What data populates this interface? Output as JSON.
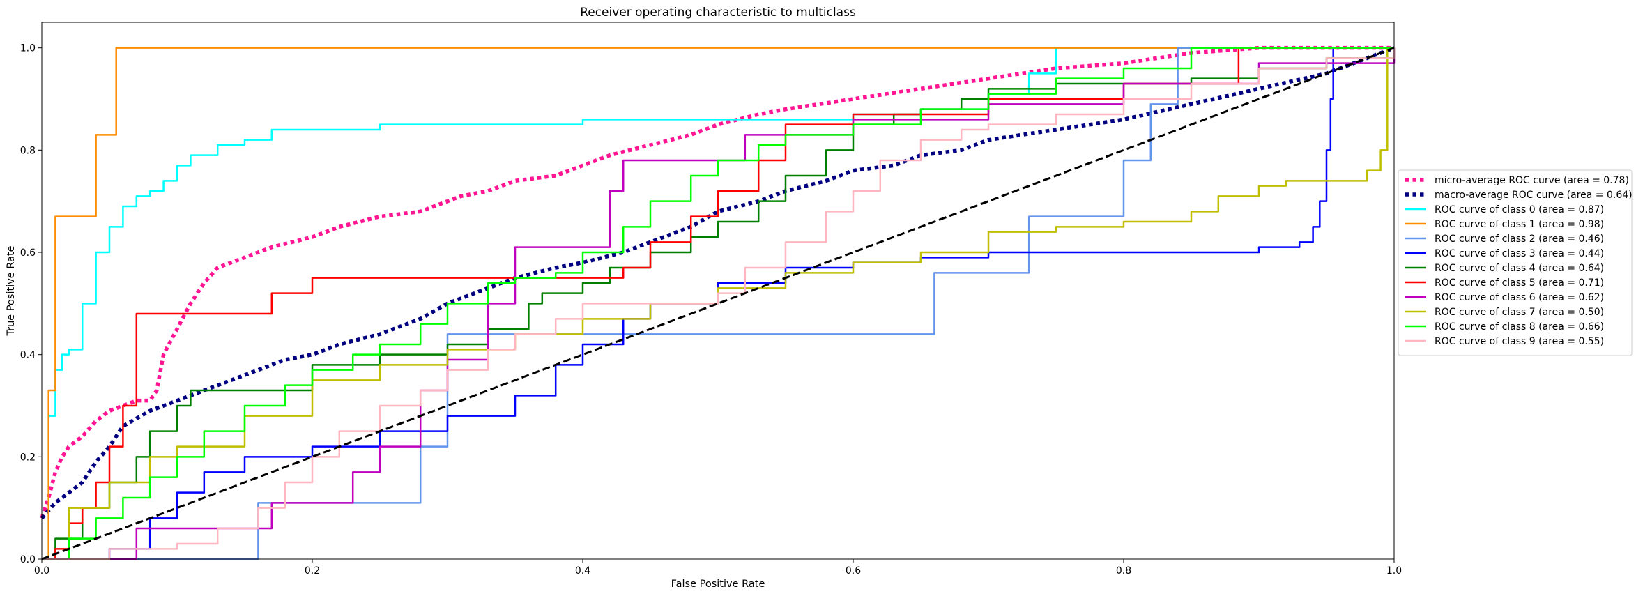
{
  "chart_data": {
    "type": "line",
    "title": "Receiver operating characteristic to multiclass",
    "xlabel": "False Positive Rate",
    "ylabel": "True Positive Rate",
    "xlim": [
      0.0,
      1.0
    ],
    "ylim": [
      0.0,
      1.05
    ],
    "xticks": [
      "0.0",
      "0.2",
      "0.4",
      "0.6",
      "0.8",
      "1.0"
    ],
    "yticks": [
      "0.0",
      "0.2",
      "0.4",
      "0.6",
      "0.8",
      "1.0"
    ],
    "grid": false,
    "legend_position": "right, outside plot",
    "series": [
      {
        "name": "micro-average ROC curve (area = 0.78)",
        "color": "#ff1493",
        "style": "dotted-thick",
        "x": [
          0,
          0.005,
          0.01,
          0.015,
          0.02,
          0.03,
          0.04,
          0.05,
          0.06,
          0.07,
          0.08,
          0.085,
          0.09,
          0.1,
          0.11,
          0.12,
          0.13,
          0.14,
          0.15,
          0.17,
          0.2,
          0.22,
          0.25,
          0.28,
          0.3,
          0.31,
          0.33,
          0.35,
          0.38,
          0.4,
          0.42,
          0.45,
          0.48,
          0.5,
          0.53,
          0.55,
          0.6,
          0.65,
          0.7,
          0.75,
          0.8,
          0.85,
          0.9,
          0.95,
          1.0
        ],
        "y": [
          0.08,
          0.12,
          0.17,
          0.2,
          0.22,
          0.24,
          0.27,
          0.29,
          0.3,
          0.31,
          0.31,
          0.33,
          0.4,
          0.45,
          0.5,
          0.54,
          0.57,
          0.58,
          0.59,
          0.61,
          0.63,
          0.65,
          0.67,
          0.68,
          0.7,
          0.71,
          0.72,
          0.74,
          0.75,
          0.77,
          0.79,
          0.81,
          0.83,
          0.85,
          0.87,
          0.88,
          0.9,
          0.92,
          0.94,
          0.96,
          0.97,
          0.99,
          1.0,
          1.0,
          1.0
        ]
      },
      {
        "name": "macro-average ROC curve (area = 0.64)",
        "color": "#000080",
        "style": "dotted-thick",
        "x": [
          0,
          0.01,
          0.02,
          0.03,
          0.04,
          0.05,
          0.06,
          0.08,
          0.1,
          0.12,
          0.15,
          0.18,
          0.2,
          0.22,
          0.25,
          0.28,
          0.3,
          0.33,
          0.35,
          0.38,
          0.4,
          0.43,
          0.45,
          0.48,
          0.5,
          0.53,
          0.55,
          0.58,
          0.6,
          0.63,
          0.65,
          0.68,
          0.7,
          0.75,
          0.8,
          0.85,
          0.9,
          0.95,
          1.0
        ],
        "y": [
          0.08,
          0.11,
          0.13,
          0.15,
          0.19,
          0.22,
          0.26,
          0.29,
          0.31,
          0.33,
          0.36,
          0.39,
          0.4,
          0.42,
          0.44,
          0.47,
          0.5,
          0.53,
          0.55,
          0.57,
          0.58,
          0.6,
          0.62,
          0.65,
          0.68,
          0.7,
          0.72,
          0.74,
          0.76,
          0.77,
          0.79,
          0.8,
          0.82,
          0.84,
          0.86,
          0.89,
          0.92,
          0.95,
          1.0
        ]
      },
      {
        "name": "ROC curve of class 0 (area = 0.87)",
        "color": "#00ffff",
        "style": "solid",
        "x": [
          0,
          0.005,
          0.01,
          0.015,
          0.02,
          0.03,
          0.04,
          0.05,
          0.06,
          0.07,
          0.08,
          0.09,
          0.1,
          0.11,
          0.13,
          0.15,
          0.17,
          0.2,
          0.25,
          0.3,
          0.35,
          0.4,
          0.45,
          0.5,
          0.55,
          0.6,
          0.65,
          0.7,
          0.73,
          0.75,
          1.0
        ],
        "y": [
          0,
          0.28,
          0.37,
          0.4,
          0.41,
          0.5,
          0.6,
          0.65,
          0.69,
          0.71,
          0.72,
          0.74,
          0.77,
          0.79,
          0.81,
          0.82,
          0.84,
          0.84,
          0.85,
          0.85,
          0.85,
          0.86,
          0.86,
          0.86,
          0.86,
          0.87,
          0.88,
          0.91,
          0.95,
          1.0,
          1.0
        ]
      },
      {
        "name": "ROC curve of class 1 (area = 0.98)",
        "color": "#ff8c00",
        "style": "solid",
        "x": [
          0,
          0.005,
          0.01,
          0.02,
          0.03,
          0.04,
          0.05,
          0.055,
          0.1,
          0.5,
          1.0
        ],
        "y": [
          0,
          0.33,
          0.67,
          0.67,
          0.67,
          0.83,
          0.83,
          1.0,
          1.0,
          1.0,
          1.0
        ]
      },
      {
        "name": "ROC curve of class 2 (area = 0.46)",
        "color": "#6495ed",
        "style": "solid",
        "x": [
          0,
          0.16,
          0.16,
          0.28,
          0.28,
          0.3,
          0.3,
          0.35,
          0.4,
          0.5,
          0.6,
          0.65,
          0.66,
          0.66,
          0.73,
          0.73,
          0.8,
          0.8,
          0.82,
          0.82,
          0.84,
          0.84,
          1.0
        ],
        "y": [
          0,
          0,
          0.11,
          0.11,
          0.22,
          0.33,
          0.44,
          0.44,
          0.44,
          0.44,
          0.44,
          0.44,
          0.44,
          0.56,
          0.56,
          0.67,
          0.67,
          0.78,
          0.78,
          0.89,
          0.89,
          1.0,
          1.0
        ]
      },
      {
        "name": "ROC curve of class 3 (area = 0.44)",
        "color": "#0000ff",
        "style": "solid",
        "x": [
          0,
          0.05,
          0.08,
          0.1,
          0.12,
          0.15,
          0.2,
          0.25,
          0.3,
          0.35,
          0.38,
          0.4,
          0.43,
          0.45,
          0.5,
          0.55,
          0.6,
          0.65,
          0.7,
          0.8,
          0.9,
          0.93,
          0.94,
          0.945,
          0.95,
          0.953,
          0.955,
          1.0
        ],
        "y": [
          0,
          0.02,
          0.08,
          0.13,
          0.17,
          0.2,
          0.22,
          0.25,
          0.28,
          0.32,
          0.38,
          0.42,
          0.47,
          0.5,
          0.54,
          0.57,
          0.58,
          0.59,
          0.6,
          0.6,
          0.61,
          0.62,
          0.65,
          0.7,
          0.8,
          0.9,
          1.0,
          1.0
        ]
      },
      {
        "name": "ROC curve of class 4 (area = 0.64)",
        "color": "#008000",
        "style": "solid",
        "x": [
          0,
          0.01,
          0.03,
          0.05,
          0.07,
          0.08,
          0.1,
          0.11,
          0.13,
          0.16,
          0.2,
          0.25,
          0.3,
          0.33,
          0.36,
          0.37,
          0.4,
          0.42,
          0.45,
          0.48,
          0.5,
          0.53,
          0.55,
          0.58,
          0.6,
          0.63,
          0.65,
          0.68,
          0.7,
          0.75,
          0.8,
          0.85,
          0.9,
          0.95,
          1.0
        ],
        "y": [
          0,
          0.04,
          0.1,
          0.15,
          0.2,
          0.25,
          0.3,
          0.33,
          0.33,
          0.33,
          0.38,
          0.4,
          0.42,
          0.45,
          0.5,
          0.52,
          0.54,
          0.57,
          0.6,
          0.63,
          0.66,
          0.7,
          0.75,
          0.8,
          0.85,
          0.87,
          0.88,
          0.9,
          0.92,
          0.93,
          0.93,
          0.94,
          0.96,
          0.98,
          1.0
        ]
      },
      {
        "name": "ROC curve of class 5 (area = 0.71)",
        "color": "#ff0000",
        "style": "solid",
        "x": [
          0,
          0.01,
          0.02,
          0.03,
          0.04,
          0.05,
          0.06,
          0.07,
          0.1,
          0.15,
          0.17,
          0.2,
          0.25,
          0.3,
          0.35,
          0.4,
          0.43,
          0.45,
          0.48,
          0.5,
          0.53,
          0.55,
          0.6,
          0.7,
          0.8,
          0.88,
          0.885,
          1.0
        ],
        "y": [
          0,
          0.02,
          0.07,
          0.1,
          0.15,
          0.22,
          0.3,
          0.48,
          0.48,
          0.48,
          0.52,
          0.55,
          0.55,
          0.55,
          0.55,
          0.55,
          0.57,
          0.62,
          0.67,
          0.72,
          0.78,
          0.85,
          0.87,
          0.9,
          0.93,
          0.93,
          1.0,
          1.0
        ]
      },
      {
        "name": "ROC curve of class 6 (area = 0.62)",
        "color": "#bf00bf",
        "style": "solid",
        "x": [
          0,
          0.07,
          0.07,
          0.16,
          0.17,
          0.21,
          0.23,
          0.25,
          0.28,
          0.3,
          0.33,
          0.35,
          0.38,
          0.4,
          0.42,
          0.43,
          0.45,
          0.5,
          0.52,
          0.6,
          0.7,
          0.8,
          0.9,
          1.0
        ],
        "y": [
          0,
          0,
          0.06,
          0.06,
          0.11,
          0.11,
          0.17,
          0.22,
          0.33,
          0.39,
          0.5,
          0.61,
          0.61,
          0.61,
          0.72,
          0.78,
          0.78,
          0.78,
          0.83,
          0.86,
          0.89,
          0.93,
          0.97,
          1.0
        ]
      },
      {
        "name": "ROC curve of class 7 (area = 0.50)",
        "color": "#bfbf00",
        "style": "solid",
        "x": [
          0,
          0.02,
          0.05,
          0.08,
          0.1,
          0.15,
          0.2,
          0.25,
          0.3,
          0.35,
          0.4,
          0.45,
          0.5,
          0.55,
          0.6,
          0.65,
          0.7,
          0.75,
          0.8,
          0.85,
          0.87,
          0.9,
          0.92,
          0.95,
          0.98,
          0.99,
          0.995,
          1.0
        ],
        "y": [
          0,
          0.1,
          0.15,
          0.2,
          0.22,
          0.28,
          0.35,
          0.38,
          0.41,
          0.44,
          0.47,
          0.5,
          0.53,
          0.56,
          0.58,
          0.6,
          0.64,
          0.65,
          0.66,
          0.68,
          0.71,
          0.73,
          0.74,
          0.74,
          0.76,
          0.8,
          1.0,
          1.0
        ]
      },
      {
        "name": "ROC curve of class 8 (area = 0.66)",
        "color": "#00ff00",
        "style": "solid",
        "x": [
          0,
          0.02,
          0.04,
          0.06,
          0.08,
          0.1,
          0.12,
          0.15,
          0.18,
          0.2,
          0.23,
          0.25,
          0.28,
          0.3,
          0.33,
          0.35,
          0.38,
          0.4,
          0.43,
          0.45,
          0.48,
          0.5,
          0.53,
          0.55,
          0.6,
          0.65,
          0.7,
          0.75,
          0.8,
          0.85,
          1.0
        ],
        "y": [
          0,
          0.04,
          0.08,
          0.12,
          0.16,
          0.2,
          0.25,
          0.3,
          0.34,
          0.37,
          0.4,
          0.42,
          0.46,
          0.5,
          0.54,
          0.55,
          0.56,
          0.6,
          0.65,
          0.7,
          0.75,
          0.78,
          0.81,
          0.83,
          0.85,
          0.88,
          0.91,
          0.94,
          0.96,
          1.0,
          1.0
        ]
      },
      {
        "name": "ROC curve of class 9 (area = 0.55)",
        "color": "#ffb6c1",
        "style": "solid",
        "x": [
          0,
          0.05,
          0.1,
          0.13,
          0.16,
          0.18,
          0.2,
          0.22,
          0.25,
          0.28,
          0.3,
          0.33,
          0.35,
          0.38,
          0.4,
          0.45,
          0.5,
          0.52,
          0.55,
          0.58,
          0.6,
          0.62,
          0.65,
          0.68,
          0.7,
          0.75,
          0.8,
          0.85,
          0.9,
          0.95,
          1.0
        ],
        "y": [
          0,
          0.02,
          0.03,
          0.06,
          0.1,
          0.15,
          0.2,
          0.25,
          0.3,
          0.33,
          0.37,
          0.41,
          0.44,
          0.47,
          0.5,
          0.5,
          0.52,
          0.57,
          0.62,
          0.68,
          0.72,
          0.78,
          0.82,
          0.84,
          0.85,
          0.87,
          0.9,
          0.93,
          0.96,
          0.98,
          1.0
        ]
      },
      {
        "name": "",
        "color": "#000000",
        "style": "dashed",
        "x": [
          0,
          1.0
        ],
        "y": [
          0,
          1.0
        ]
      }
    ]
  }
}
